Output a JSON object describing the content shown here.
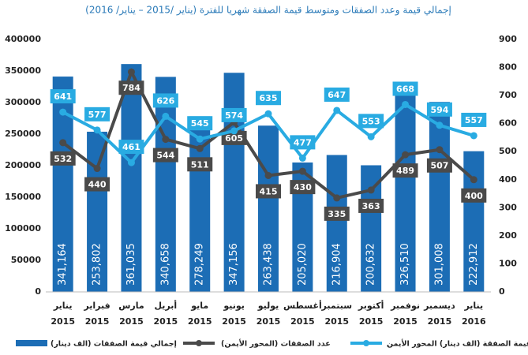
{
  "chart_data": {
    "type": "bar",
    "title": "إجمالي قيمة وعدد الصفقات ومتوسط قيمة الصفقة شهريا للفترة (يناير /2015 – يناير/ 2016)",
    "categories": [
      [
        "يناير",
        "2015"
      ],
      [
        "فبراير",
        "2015"
      ],
      [
        "مارس",
        "2015"
      ],
      [
        "أبريل",
        "2015"
      ],
      [
        "مايو",
        "2015"
      ],
      [
        "يونيو",
        "2015"
      ],
      [
        "يوليو",
        "2015"
      ],
      [
        "أغسطس",
        "2015"
      ],
      [
        "سبتمبر",
        "2015"
      ],
      [
        "أكتوبر",
        "2015"
      ],
      [
        "نوفمبر",
        "2015"
      ],
      [
        "ديسمبر",
        "2015"
      ],
      [
        "يناير",
        "2016"
      ]
    ],
    "series": [
      {
        "name": "إجمالي قيمة الصفقات (الف دينار)",
        "type": "bar",
        "color": "#1c6db5",
        "values": [
          341164,
          253802,
          361035,
          340658,
          278249,
          347156,
          263438,
          205020,
          216904,
          200632,
          326510,
          301008,
          222912
        ],
        "value_labels": [
          "341,164",
          "253,802",
          "361,035",
          "340,658",
          "278,249",
          "347,156",
          "263,438",
          "205,020",
          "216,904",
          "200,632",
          "326,510",
          "301,008",
          "222,912"
        ]
      },
      {
        "name": "عدد الصفقات (المحور الأيمن)",
        "type": "line",
        "axis": "y2",
        "color": "#4a4a4a",
        "values": [
          532,
          440,
          784,
          544,
          511,
          605,
          415,
          430,
          335,
          363,
          489,
          507,
          400
        ]
      },
      {
        "name": "متوسط قيمة الصفقة (الف دينار) المحور الأيمن",
        "type": "line",
        "axis": "y2",
        "color": "#29abe2",
        "values": [
          641,
          577,
          461,
          626,
          545,
          574,
          635,
          477,
          647,
          553,
          668,
          594,
          557
        ]
      }
    ],
    "ylim": [
      0,
      400000
    ],
    "yticks": [
      0,
      50000,
      100000,
      150000,
      200000,
      250000,
      300000,
      350000,
      400000
    ],
    "y2lim": [
      0,
      900
    ],
    "y2ticks": [
      0,
      100,
      200,
      300,
      400,
      500,
      600,
      700,
      800,
      900
    ],
    "grid": false
  }
}
